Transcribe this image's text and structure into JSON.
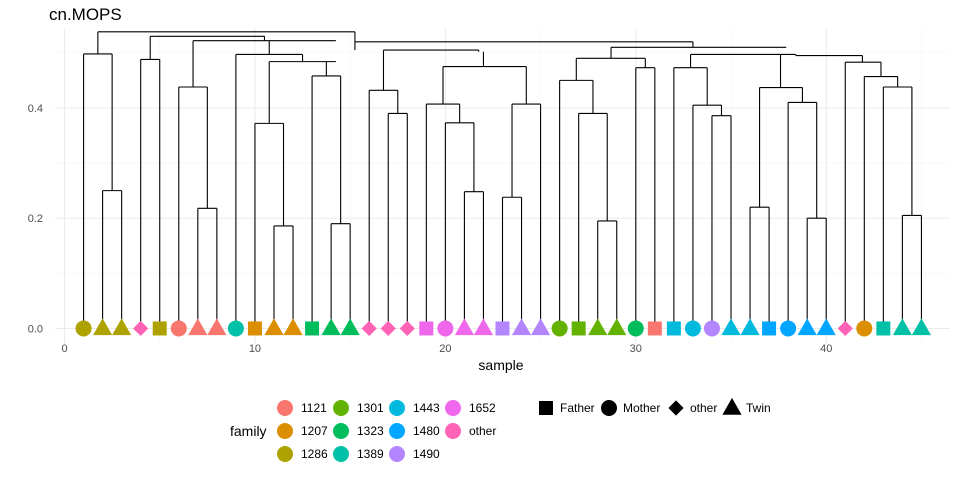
{
  "chart_data": {
    "type": "scatter",
    "title": "cn.MOPS",
    "xlabel": "sample",
    "ylabel": "",
    "xlim": [
      -0.5,
      46.5
    ],
    "ylim": [
      -0.03,
      0.545
    ],
    "x_ticks": [
      0,
      10,
      20,
      30,
      40
    ],
    "x_tick_labels": [
      "0",
      "10",
      "20",
      "30",
      "40"
    ],
    "y_ticks": [
      0.0,
      0.2,
      0.4
    ],
    "y_tick_labels": [
      "0.0",
      "0.2",
      "0.4"
    ],
    "grid": true,
    "legend_position": "bottom",
    "family_legend": {
      "title": "family",
      "entries": [
        {
          "label": "1121",
          "color": "#F8766D"
        },
        {
          "label": "1207",
          "color": "#DB8E00"
        },
        {
          "label": "1286",
          "color": "#AEA200"
        },
        {
          "label": "1301",
          "color": "#64B200"
        },
        {
          "label": "1323",
          "color": "#00BD5C"
        },
        {
          "label": "1389",
          "color": "#00C1A7"
        },
        {
          "label": "1443",
          "color": "#00BADE"
        },
        {
          "label": "1480",
          "color": "#00A6FF"
        },
        {
          "label": "1490",
          "color": "#B385FF"
        },
        {
          "label": "1652",
          "color": "#EF67EB"
        },
        {
          "label": "other",
          "color": "#FF63B6"
        }
      ]
    },
    "shape_legend": {
      "title": "",
      "entries": [
        {
          "label": "Father",
          "shape": "square"
        },
        {
          "label": "Mother",
          "shape": "circle"
        },
        {
          "label": "other",
          "shape": "diamond"
        },
        {
          "label": "Twin",
          "shape": "triangle"
        }
      ]
    },
    "points": [
      {
        "x": 1,
        "family": "1286",
        "role": "Mother"
      },
      {
        "x": 2,
        "family": "1286",
        "role": "Twin"
      },
      {
        "x": 3,
        "family": "1286",
        "role": "Twin"
      },
      {
        "x": 4,
        "family": "other",
        "role": "other"
      },
      {
        "x": 5,
        "family": "1286",
        "role": "Father"
      },
      {
        "x": 6,
        "family": "1121",
        "role": "Mother"
      },
      {
        "x": 7,
        "family": "1121",
        "role": "Twin"
      },
      {
        "x": 8,
        "family": "1121",
        "role": "Twin"
      },
      {
        "x": 9,
        "family": "1389",
        "role": "Mother"
      },
      {
        "x": 10,
        "family": "1207",
        "role": "Father"
      },
      {
        "x": 11,
        "family": "1207",
        "role": "Twin"
      },
      {
        "x": 12,
        "family": "1207",
        "role": "Twin"
      },
      {
        "x": 13,
        "family": "1323",
        "role": "Father"
      },
      {
        "x": 14,
        "family": "1323",
        "role": "Twin"
      },
      {
        "x": 15,
        "family": "1323",
        "role": "Twin"
      },
      {
        "x": 16,
        "family": "other",
        "role": "other"
      },
      {
        "x": 17,
        "family": "other",
        "role": "other"
      },
      {
        "x": 18,
        "family": "other",
        "role": "other"
      },
      {
        "x": 19,
        "family": "1652",
        "role": "Father"
      },
      {
        "x": 20,
        "family": "1652",
        "role": "Mother"
      },
      {
        "x": 21,
        "family": "1652",
        "role": "Twin"
      },
      {
        "x": 22,
        "family": "1652",
        "role": "Twin"
      },
      {
        "x": 23,
        "family": "1490",
        "role": "Father"
      },
      {
        "x": 24,
        "family": "1490",
        "role": "Twin"
      },
      {
        "x": 25,
        "family": "1490",
        "role": "Twin"
      },
      {
        "x": 26,
        "family": "1301",
        "role": "Mother"
      },
      {
        "x": 27,
        "family": "1301",
        "role": "Father"
      },
      {
        "x": 28,
        "family": "1301",
        "role": "Twin"
      },
      {
        "x": 29,
        "family": "1301",
        "role": "Twin"
      },
      {
        "x": 30,
        "family": "1323",
        "role": "Mother"
      },
      {
        "x": 31,
        "family": "1121",
        "role": "Father"
      },
      {
        "x": 32,
        "family": "1443",
        "role": "Father"
      },
      {
        "x": 33,
        "family": "1443",
        "role": "Mother"
      },
      {
        "x": 34,
        "family": "1490",
        "role": "Mother"
      },
      {
        "x": 35,
        "family": "1443",
        "role": "Twin"
      },
      {
        "x": 36,
        "family": "1443",
        "role": "Twin"
      },
      {
        "x": 37,
        "family": "1480",
        "role": "Father"
      },
      {
        "x": 38,
        "family": "1480",
        "role": "Mother"
      },
      {
        "x": 39,
        "family": "1480",
        "role": "Twin"
      },
      {
        "x": 40,
        "family": "1480",
        "role": "Twin"
      },
      {
        "x": 41,
        "family": "other",
        "role": "other"
      },
      {
        "x": 42,
        "family": "1207",
        "role": "Mother"
      },
      {
        "x": 43,
        "family": "1389",
        "role": "Father"
      },
      {
        "x": 44,
        "family": "1389",
        "role": "Twin"
      },
      {
        "x": 45,
        "family": "1389",
        "role": "Twin"
      }
    ],
    "dendrogram_segments": [
      [
        1,
        0,
        1,
        0.498
      ],
      [
        2,
        0,
        2,
        0.25
      ],
      [
        3,
        0,
        3,
        0.25
      ],
      [
        2,
        0.25,
        3,
        0.25
      ],
      [
        1,
        0.498,
        2.5,
        0.498
      ],
      [
        2.5,
        0.25,
        2.5,
        0.498
      ],
      [
        4,
        0,
        4,
        0.488
      ],
      [
        5,
        0,
        5,
        0.488
      ],
      [
        4,
        0.488,
        5,
        0.488
      ],
      [
        1.75,
        0.498,
        1.75,
        0.538
      ],
      [
        4.5,
        0.488,
        4.5,
        0.53
      ],
      [
        4.5,
        0.53,
        10.5,
        0.53
      ],
      [
        6,
        0,
        6,
        0.438
      ],
      [
        7,
        0,
        7,
        0.218
      ],
      [
        8,
        0,
        8,
        0.218
      ],
      [
        7,
        0.218,
        8,
        0.218
      ],
      [
        7.5,
        0.218,
        7.5,
        0.438
      ],
      [
        6,
        0.438,
        7.5,
        0.438
      ],
      [
        6.75,
        0.438,
        6.75,
        0.522
      ],
      [
        6.75,
        0.522,
        14.25,
        0.522
      ],
      [
        10.5,
        0.522,
        10.5,
        0.53
      ],
      [
        9,
        0,
        9,
        0.497
      ],
      [
        9,
        0.497,
        12.5,
        0.497
      ],
      [
        10,
        0,
        10,
        0.372
      ],
      [
        11,
        0,
        11,
        0.186
      ],
      [
        12,
        0,
        12,
        0.186
      ],
      [
        11,
        0.186,
        12,
        0.186
      ],
      [
        11.5,
        0.186,
        11.5,
        0.372
      ],
      [
        10,
        0.372,
        11.5,
        0.372
      ],
      [
        10.75,
        0.372,
        10.75,
        0.484
      ],
      [
        10.75,
        0.484,
        14.25,
        0.484
      ],
      [
        13,
        0,
        13,
        0.458
      ],
      [
        14,
        0,
        14,
        0.19
      ],
      [
        15,
        0,
        15,
        0.19
      ],
      [
        14,
        0.19,
        15,
        0.19
      ],
      [
        14.5,
        0.19,
        14.5,
        0.458
      ],
      [
        13,
        0.458,
        14.5,
        0.458
      ],
      [
        13.75,
        0.458,
        13.75,
        0.484
      ],
      [
        12.5,
        0.484,
        12.5,
        0.497
      ],
      [
        10.75,
        0.497,
        10.75,
        0.522
      ],
      [
        1.75,
        0.538,
        15.25,
        0.538
      ],
      [
        15.25,
        0.505,
        15.25,
        0.538
      ],
      [
        16,
        0,
        16,
        0.432
      ],
      [
        17,
        0,
        17,
        0.39
      ],
      [
        18,
        0,
        18,
        0.39
      ],
      [
        17,
        0.39,
        18,
        0.39
      ],
      [
        17.5,
        0.39,
        17.5,
        0.432
      ],
      [
        16,
        0.432,
        17.5,
        0.432
      ],
      [
        16.75,
        0.432,
        16.75,
        0.505
      ],
      [
        16.75,
        0.505,
        21.75,
        0.505
      ],
      [
        19,
        0,
        19,
        0.407
      ],
      [
        20,
        0,
        20,
        0.373
      ],
      [
        21,
        0,
        21,
        0.248
      ],
      [
        22,
        0,
        22,
        0.248
      ],
      [
        21,
        0.248,
        22,
        0.248
      ],
      [
        21.5,
        0.248,
        21.5,
        0.373
      ],
      [
        20,
        0.373,
        21.5,
        0.373
      ],
      [
        20.75,
        0.373,
        20.75,
        0.407
      ],
      [
        19,
        0.407,
        20.75,
        0.407
      ],
      [
        19.875,
        0.407,
        19.875,
        0.475
      ],
      [
        23,
        0,
        23,
        0.238
      ],
      [
        24,
        0,
        24,
        0.238
      ],
      [
        23,
        0.238,
        24,
        0.238
      ],
      [
        23.5,
        0.238,
        23.5,
        0.407
      ],
      [
        25,
        0,
        25,
        0.407
      ],
      [
        23.5,
        0.407,
        25,
        0.407
      ],
      [
        24.25,
        0.407,
        24.25,
        0.475
      ],
      [
        19.875,
        0.475,
        24.25,
        0.475
      ],
      [
        22,
        0.475,
        22,
        0.502
      ],
      [
        21.75,
        0.502,
        21.75,
        0.505
      ],
      [
        15.25,
        0.52,
        33,
        0.52
      ],
      [
        26,
        0,
        26,
        0.45
      ],
      [
        27,
        0,
        27,
        0.39
      ],
      [
        28,
        0,
        28,
        0.195
      ],
      [
        29,
        0,
        29,
        0.195
      ],
      [
        28,
        0.195,
        29,
        0.195
      ],
      [
        28.5,
        0.195,
        28.5,
        0.39
      ],
      [
        27,
        0.39,
        28.5,
        0.39
      ],
      [
        27.75,
        0.39,
        27.75,
        0.45
      ],
      [
        26,
        0.45,
        27.75,
        0.45
      ],
      [
        26.875,
        0.45,
        26.875,
        0.49
      ],
      [
        26.875,
        0.49,
        30.5,
        0.49
      ],
      [
        30,
        0,
        30,
        0.473
      ],
      [
        31,
        0,
        31,
        0.473
      ],
      [
        30,
        0.473,
        31,
        0.473
      ],
      [
        30.5,
        0.473,
        30.5,
        0.49
      ],
      [
        28.7,
        0.49,
        28.7,
        0.51
      ],
      [
        28.7,
        0.51,
        37.9,
        0.51
      ],
      [
        32,
        0,
        32,
        0.473
      ],
      [
        33,
        0,
        33,
        0.405
      ],
      [
        34,
        0,
        34,
        0.386
      ],
      [
        35,
        0,
        35,
        0.386
      ],
      [
        34,
        0.386,
        35,
        0.386
      ],
      [
        34.5,
        0.386,
        34.5,
        0.405
      ],
      [
        33,
        0.405,
        34.5,
        0.405
      ],
      [
        33.75,
        0.405,
        33.75,
        0.473
      ],
      [
        32,
        0.473,
        33.75,
        0.473
      ],
      [
        32.875,
        0.473,
        32.875,
        0.497
      ],
      [
        32.875,
        0.497,
        38.4,
        0.497
      ],
      [
        36,
        0,
        36,
        0.22
      ],
      [
        37,
        0,
        37,
        0.22
      ],
      [
        36,
        0.22,
        37,
        0.22
      ],
      [
        36.5,
        0.22,
        36.5,
        0.437
      ],
      [
        38,
        0,
        38,
        0.41
      ],
      [
        39,
        0,
        39,
        0.2
      ],
      [
        40,
        0,
        40,
        0.2
      ],
      [
        39,
        0.2,
        40,
        0.2
      ],
      [
        39.5,
        0.2,
        39.5,
        0.41
      ],
      [
        38,
        0.41,
        39.5,
        0.41
      ],
      [
        38.75,
        0.41,
        38.75,
        0.437
      ],
      [
        36.5,
        0.437,
        38.75,
        0.437
      ],
      [
        37.6,
        0.437,
        37.6,
        0.497
      ],
      [
        41,
        0,
        41,
        0.483
      ],
      [
        42,
        0,
        42,
        0.457
      ],
      [
        43,
        0,
        43,
        0.438
      ],
      [
        44,
        0,
        44,
        0.205
      ],
      [
        45,
        0,
        45,
        0.205
      ],
      [
        44,
        0.205,
        45,
        0.205
      ],
      [
        44.5,
        0.205,
        44.5,
        0.438
      ],
      [
        43,
        0.438,
        44.5,
        0.438
      ],
      [
        43.75,
        0.438,
        43.75,
        0.457
      ],
      [
        42,
        0.457,
        43.75,
        0.457
      ],
      [
        42.875,
        0.457,
        42.875,
        0.483
      ],
      [
        41,
        0.483,
        42.875,
        0.483
      ],
      [
        41.9,
        0.483,
        41.9,
        0.495
      ],
      [
        38.4,
        0.495,
        41.9,
        0.495
      ],
      [
        38.4,
        0.495,
        38.4,
        0.497
      ],
      [
        33,
        0.51,
        33,
        0.52
      ]
    ]
  }
}
